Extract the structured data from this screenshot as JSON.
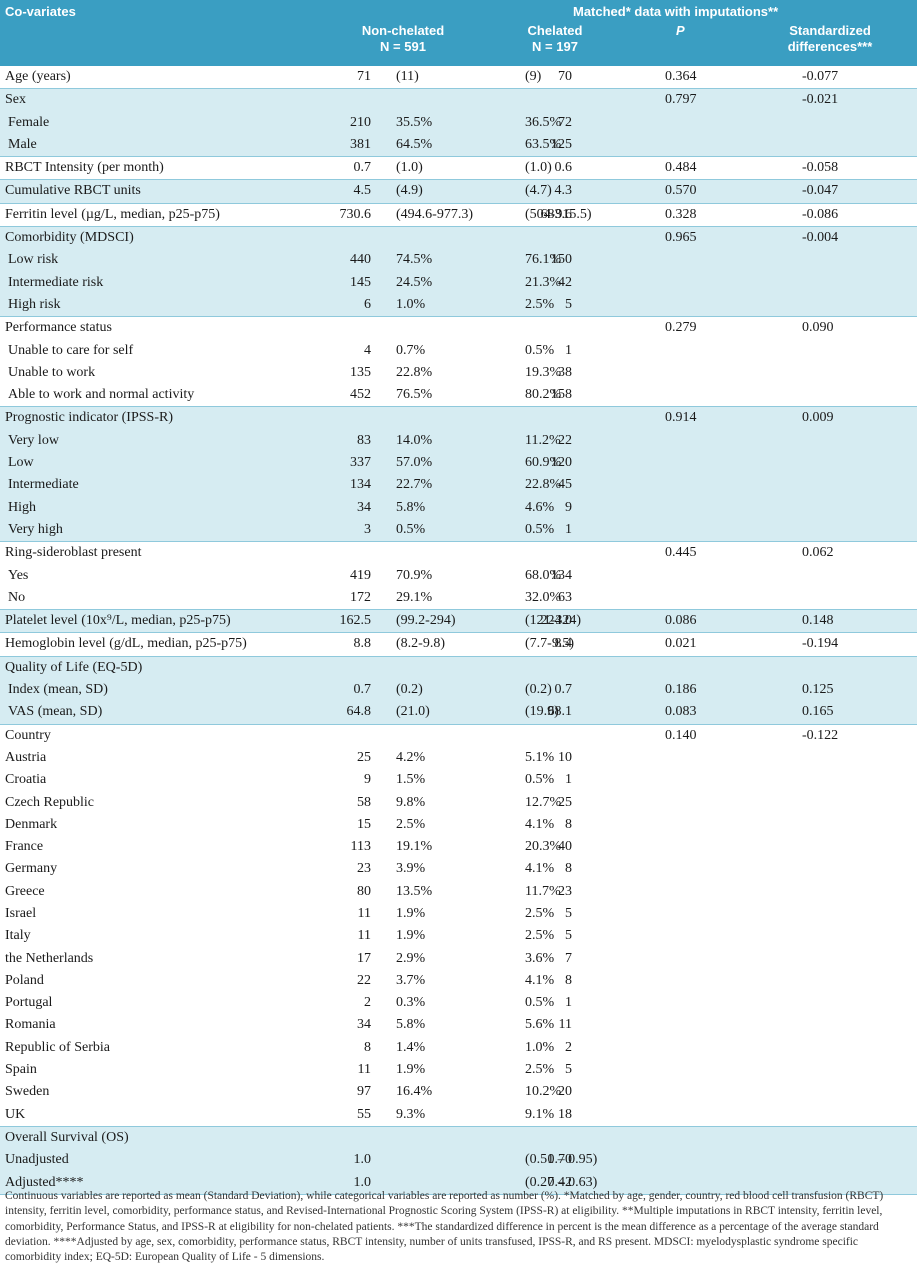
{
  "header": {
    "covariates": "Co-variates",
    "matched": "Matched* data with imputations**",
    "nonchelated": "Non-chelated",
    "n_nonchelated": "N = 591",
    "chelated": "Chelated",
    "n_chelated": "N = 197",
    "p": "P",
    "std1": "Standardized",
    "std2": "differences***"
  },
  "groups": [
    {
      "shaded": false,
      "rows": [
        {
          "label": "Age (years)",
          "a": "71",
          "b": "(11)",
          "c": "70",
          "d": "(9)",
          "p": "0.364",
          "s": "-0.077"
        }
      ]
    },
    {
      "shaded": true,
      "rows": [
        {
          "label": "Sex",
          "p": "0.797",
          "s": "-0.021"
        },
        {
          "label": "Female",
          "indent": true,
          "a": "210",
          "b": "35.5%",
          "c": "72",
          "d": "36.5%"
        },
        {
          "label": "Male",
          "indent": true,
          "a": "381",
          "b": "64.5%",
          "c": "125",
          "d": "63.5%"
        }
      ]
    },
    {
      "shaded": false,
      "rows": [
        {
          "label": "RBCT Intensity (per month)",
          "a": "0.7",
          "b": "(1.0)",
          "c": "0.6",
          "d": "(1.0)",
          "p": "0.484",
          "s": "-0.058"
        }
      ]
    },
    {
      "shaded": true,
      "rows": [
        {
          "label": "Cumulative RBCT units",
          "a": "4.5",
          "b": "(4.9)",
          "c": "4.3",
          "d": "(4.7)",
          "p": "0.570",
          "s": "-0.047"
        }
      ]
    },
    {
      "shaded": false,
      "rows": [
        {
          "label": "Ferritin level (µg/L, median, p25-p75)",
          "a": "730.6",
          "b": "(494.6-977.3)",
          "c": "683.6",
          "d": "(504-915.5)",
          "p": "0.328",
          "s": "-0.086"
        }
      ]
    },
    {
      "shaded": true,
      "rows": [
        {
          "label": "Comorbidity (MDSCI)",
          "p": "0.965",
          "s": "-0.004"
        },
        {
          "label": "Low risk",
          "indent": true,
          "a": "440",
          "b": "74.5%",
          "c": "150",
          "d": "76.1%"
        },
        {
          "label": "Intermediate risk",
          "indent": true,
          "a": "145",
          "b": "24.5%",
          "c": "42",
          "d": "21.3%"
        },
        {
          "label": "High risk",
          "indent": true,
          "a": "6",
          "b": "1.0%",
          "c": "5",
          "d": "2.5%"
        }
      ]
    },
    {
      "shaded": false,
      "rows": [
        {
          "label": "Performance status",
          "p": "0.279",
          "s": "0.090"
        },
        {
          "label": "Unable to care for self",
          "indent": true,
          "a": "4",
          "b": "0.7%",
          "c": "1",
          "d": "0.5%"
        },
        {
          "label": "Unable to work",
          "indent": true,
          "a": "135",
          "b": "22.8%",
          "c": "38",
          "d": "19.3%"
        },
        {
          "label": "Able to work and normal activity",
          "indent": true,
          "a": "452",
          "b": "76.5%",
          "c": "158",
          "d": "80.2%"
        }
      ]
    },
    {
      "shaded": true,
      "rows": [
        {
          "label": "Prognostic indicator (IPSS-R)",
          "p": "0.914",
          "s": "0.009"
        },
        {
          "label": "Very low",
          "indent": true,
          "a": "83",
          "b": "14.0%",
          "c": "22",
          "d": "11.2%"
        },
        {
          "label": "Low",
          "indent": true,
          "a": "337",
          "b": "57.0%",
          "c": "120",
          "d": "60.9%"
        },
        {
          "label": "Intermediate",
          "indent": true,
          "a": "134",
          "b": "22.7%",
          "c": "45",
          "d": "22.8%"
        },
        {
          "label": "High",
          "indent": true,
          "a": "34",
          "b": "5.8%",
          "c": "9",
          "d": "4.6%"
        },
        {
          "label": "Very high",
          "indent": true,
          "a": "3",
          "b": "0.5%",
          "c": "1",
          "d": "0.5%"
        }
      ]
    },
    {
      "shaded": false,
      "rows": [
        {
          "label": "Ring-sideroblast present",
          "p": "0.445",
          "s": "0.062"
        },
        {
          "label": "Yes",
          "indent": true,
          "a": "419",
          "b": "70.9%",
          "c": "134",
          "d": "68.0%"
        },
        {
          "label": "No",
          "indent": true,
          "a": "172",
          "b": "29.1%",
          "c": "63",
          "d": "32.0%"
        }
      ]
    },
    {
      "shaded": true,
      "rows": [
        {
          "label": "Platelet level (10x⁹/L, median, p25-p75)",
          "a": "162.5",
          "b": "(99.2-294)",
          "c": "224.0",
          "d": "(121-324)",
          "p": "0.086",
          "s": "0.148"
        }
      ]
    },
    {
      "shaded": false,
      "rows": [
        {
          "label": "Hemoglobin level (g/dL, median, p25-p75)",
          "a": "8.8",
          "b": "(8.2-9.8)",
          "c": "8.4",
          "d": "(7.7-9.5)",
          "p": "0.021",
          "s": "-0.194"
        }
      ]
    },
    {
      "shaded": true,
      "rows": [
        {
          "label": "Quality of Life (EQ-5D)"
        },
        {
          "label": "Index (mean, SD)",
          "indent": true,
          "a": "0.7",
          "b": "(0.2)",
          "c": "0.7",
          "d": "(0.2)",
          "p": "0.186",
          "s": "0.125"
        },
        {
          "label": "VAS (mean, SD)",
          "indent": true,
          "a": "64.8",
          "b": "(21.0)",
          "c": "68.1",
          "d": "(19.9)",
          "p": "0.083",
          "s": "0.165"
        }
      ]
    },
    {
      "shaded": false,
      "rows": [
        {
          "label": "Country",
          "p": "0.140",
          "s": "-0.122"
        },
        {
          "label": "Austria",
          "a": "25",
          "b": "4.2%",
          "c": "10",
          "d": "5.1%"
        },
        {
          "label": "Croatia",
          "a": "9",
          "b": "1.5%",
          "c": "1",
          "d": "0.5%"
        },
        {
          "label": "Czech Republic",
          "a": "58",
          "b": "9.8%",
          "c": "25",
          "d": "12.7%"
        },
        {
          "label": "Denmark",
          "a": "15",
          "b": "2.5%",
          "c": "8",
          "d": "4.1%"
        },
        {
          "label": "France",
          "a": "113",
          "b": "19.1%",
          "c": "40",
          "d": "20.3%"
        },
        {
          "label": "Germany",
          "a": "23",
          "b": "3.9%",
          "c": "8",
          "d": "4.1%"
        },
        {
          "label": "Greece",
          "a": "80",
          "b": "13.5%",
          "c": "23",
          "d": "11.7%"
        },
        {
          "label": "Israel",
          "a": "11",
          "b": "1.9%",
          "c": "5",
          "d": "2.5%"
        },
        {
          "label": "Italy",
          "a": "11",
          "b": "1.9%",
          "c": "5",
          "d": "2.5%"
        },
        {
          "label": "the Netherlands",
          "a": "17",
          "b": "2.9%",
          "c": "7",
          "d": "3.6%"
        },
        {
          "label": "Poland",
          "a": "22",
          "b": "3.7%",
          "c": "8",
          "d": "4.1%"
        },
        {
          "label": "Portugal",
          "a": "2",
          "b": "0.3%",
          "c": "1",
          "d": "0.5%"
        },
        {
          "label": "Romania",
          "a": "34",
          "b": "5.8%",
          "c": "11",
          "d": "5.6%"
        },
        {
          "label": "Republic of Serbia",
          "a": "8",
          "b": "1.4%",
          "c": "2",
          "d": "1.0%"
        },
        {
          "label": "Spain",
          "a": "11",
          "b": "1.9%",
          "c": "5",
          "d": "2.5%"
        },
        {
          "label": "Sweden",
          "a": "97",
          "b": "16.4%",
          "c": "20",
          "d": "10.2%"
        },
        {
          "label": "UK",
          "a": "55",
          "b": "9.3%",
          "c": "18",
          "d": "9.1%"
        }
      ]
    },
    {
      "shaded": true,
      "rows": [
        {
          "label": "Overall Survival (OS)"
        },
        {
          "label": "Unadjusted",
          "a": "1.0",
          "c": "0.70",
          "d": "(0.51 – 0.95)"
        },
        {
          "label": "Adjusted****",
          "a": "1.0",
          "c": "0.42",
          "d": "(0.27 – 0.63)"
        }
      ]
    }
  ],
  "footnote": "Continuous variables are reported as mean (Standard Deviation), while categorical variables are reported as number (%). *Matched by age, gender, country, red blood cell transfusion (RBCT) intensity, ferritin level, comorbidity, performance status, and Revised-International Prognostic Scoring System (IPSS-R) at eligibility. **Multiple imputations in RBCT intensity, ferritin level, comorbidity, Performance Status, and IPSS-R at eligibility for non-chelated patients. ***The standardized difference in percent is the mean difference as a percentage of the average standard deviation. ****Adjusted by age, sex, comorbidity, performance status, RBCT intensity, number of units transfused, IPSS-R, and RS present. MDSCI: myelodysplastic syndrome specific comorbidity index; EQ-5D: European Quality of Life - 5 dimensions."
}
